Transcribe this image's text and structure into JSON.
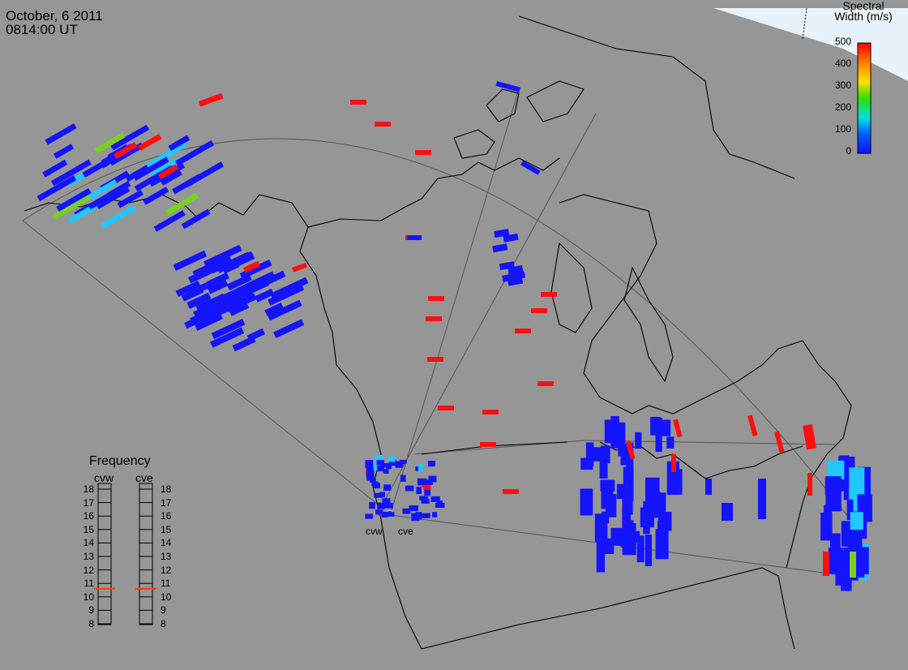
{
  "header": {
    "date": "October, 6 2011",
    "time": "0814:00 UT"
  },
  "colorbar": {
    "title_line1": "Spectral",
    "title_line2": "Width (m/s)",
    "ticks": [
      "500",
      "400",
      "300",
      "200",
      "100",
      "0"
    ],
    "colors": [
      "#ff0000",
      "#ff8c00",
      "#ffe000",
      "#30e000",
      "#00e0e0",
      "#0060ff",
      "#1010ff"
    ]
  },
  "frequency": {
    "title": "Frequency",
    "columns": [
      "cvw",
      "cve"
    ],
    "scale": [
      "18",
      "17",
      "16",
      "15",
      "14",
      "13",
      "12",
      "11",
      "10",
      "9",
      "8"
    ],
    "values": [
      10.6,
      10.6
    ]
  },
  "sites": {
    "west": "cvw",
    "east": "cve"
  },
  "colors": {
    "background": "#969696",
    "coast": "#000000",
    "fov": "#555555",
    "cap": "#e8f2fb",
    "marker": "#ff3b00"
  }
}
